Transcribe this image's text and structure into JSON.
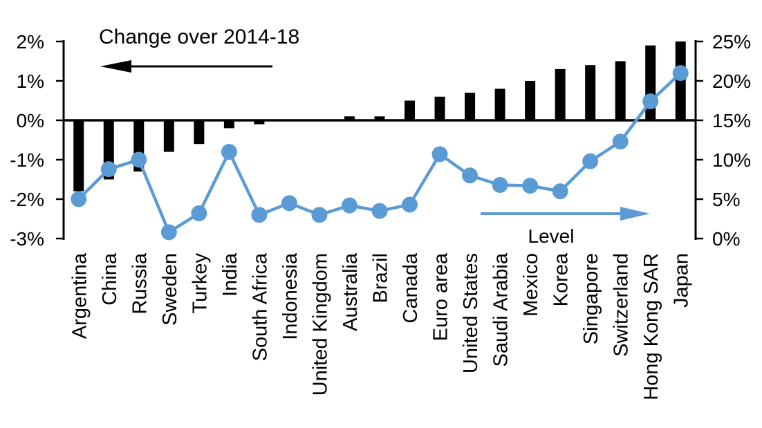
{
  "chart_data": {
    "type": "combo-bar-line",
    "title": "Change over 2014-18",
    "categories": [
      "Argentina",
      "China",
      "Russia",
      "Sweden",
      "Turkey",
      "India",
      "South Africa",
      "Indonesia",
      "United Kingdom",
      "Australia",
      "Brazil",
      "Canada",
      "Euro area",
      "United States",
      "Saudi Arabia",
      "Mexico",
      "Korea",
      "Singapore",
      "Switzerland",
      "Hong Kong SAR",
      "Japan"
    ],
    "series": [
      {
        "name": "Change over 2014-18",
        "type": "bar",
        "axis": "left",
        "color": "#000000",
        "values": [
          -1.8,
          -1.5,
          -1.3,
          -0.8,
          -0.6,
          -0.2,
          -0.1,
          0,
          0,
          0.1,
          0.1,
          0.5,
          0.6,
          0.7,
          0.8,
          1.0,
          1.3,
          1.4,
          1.5,
          1.9,
          2.0
        ]
      },
      {
        "name": "Level",
        "type": "line",
        "axis": "right",
        "color": "#5B9BD5",
        "values": [
          5.0,
          8.8,
          10.0,
          0.8,
          3.2,
          11.0,
          3.0,
          4.5,
          3.0,
          4.2,
          3.5,
          4.3,
          10.7,
          8.0,
          6.8,
          6.7,
          6.0,
          9.8,
          12.3,
          17.4,
          21.0
        ]
      }
    ],
    "left_axis": {
      "min": -3,
      "max": 2,
      "tick_labels": [
        "2%",
        "1%",
        "0%",
        "-1%",
        "-2%",
        "-3%"
      ],
      "tick_values": [
        2,
        1,
        0,
        -1,
        -2,
        -3
      ]
    },
    "right_axis": {
      "min": 0,
      "max": 25,
      "tick_labels": [
        "25%",
        "20%",
        "15%",
        "10%",
        "5%",
        "0%"
      ],
      "tick_values": [
        25,
        20,
        15,
        10,
        5,
        0
      ]
    },
    "annotations": {
      "bar_series_label": "Change over 2014-18",
      "line_series_label": "Level",
      "bar_arrow_direction": "left",
      "line_arrow_direction": "right",
      "bar_color": "#000000",
      "line_color": "#5B9BD5"
    },
    "grid": "off",
    "background_color": "#ffffff"
  }
}
